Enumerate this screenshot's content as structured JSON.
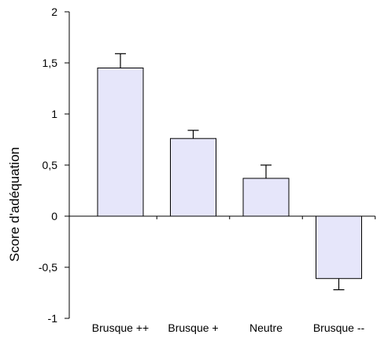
{
  "chart_data": {
    "type": "bar",
    "title": "",
    "xlabel": "",
    "ylabel": "Score d'adéquation",
    "categories": [
      "Brusque ++",
      "Brusque +",
      "Neutre",
      "Brusque --"
    ],
    "values": [
      1.45,
      0.76,
      0.37,
      -0.61
    ],
    "error": [
      0.14,
      0.08,
      0.13,
      0.11
    ],
    "ylim": [
      -1,
      2
    ],
    "yticks": [
      -1,
      -0.5,
      0,
      0.5,
      1,
      1.5,
      2
    ],
    "ytick_labels": [
      "-1",
      "-0,5",
      "0",
      "0,5",
      "1",
      "1,5",
      "2"
    ],
    "grid": false,
    "legend": "none",
    "colors": {
      "bar_fill": "#e6e6fa",
      "bar_stroke": "#000000",
      "axis": "#000000"
    }
  }
}
